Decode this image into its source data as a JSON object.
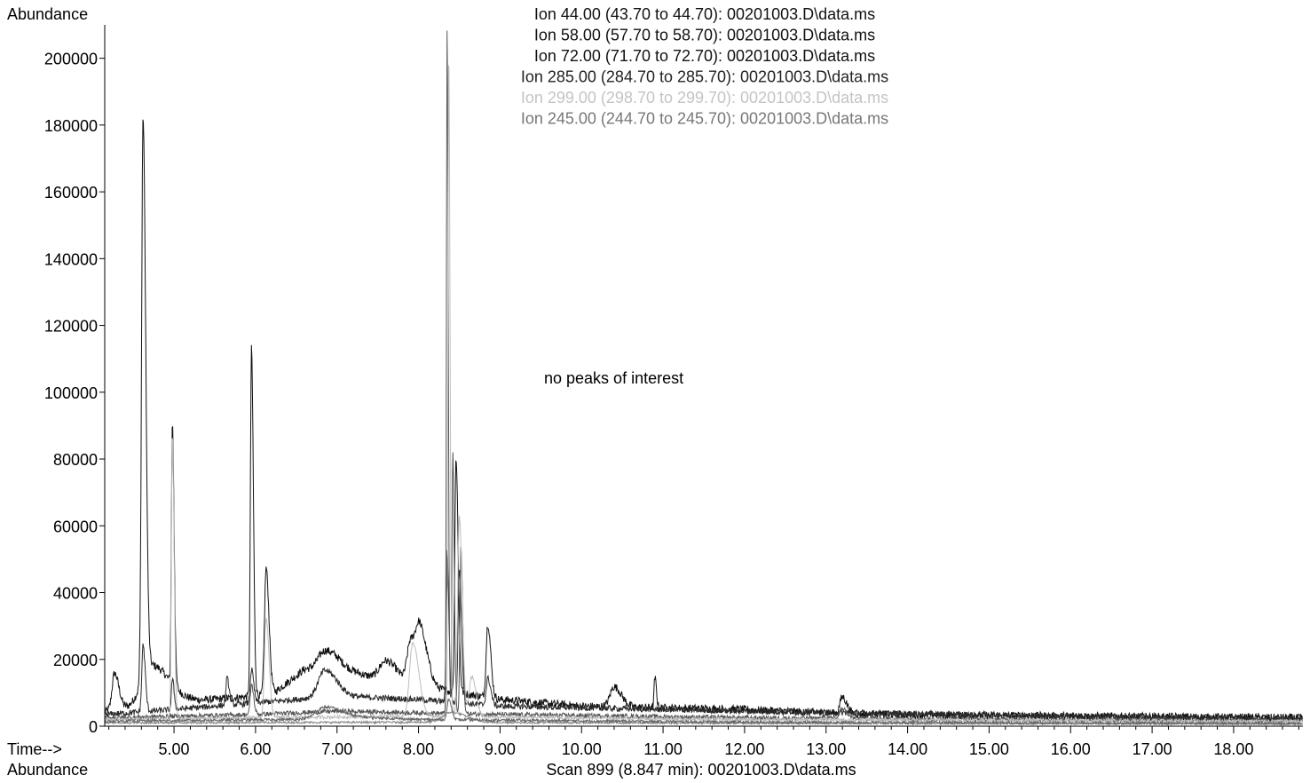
{
  "chart_data": {
    "type": "line",
    "ylabel": "Abundance",
    "xlabel": "Time-->",
    "xlim": [
      4.15,
      18.85
    ],
    "ylim": [
      0,
      210000
    ],
    "yticks": [
      0,
      20000,
      40000,
      60000,
      80000,
      100000,
      120000,
      140000,
      160000,
      180000,
      200000
    ],
    "ytick_labels": [
      "0",
      "20000",
      "40000",
      "60000",
      "80000",
      "100000",
      "120000",
      "140000",
      "160000",
      "180000",
      "200000"
    ],
    "xticks": [
      5,
      6,
      7,
      8,
      9,
      10,
      11,
      12,
      13,
      14,
      15,
      16,
      17,
      18
    ],
    "xtick_labels": [
      "5.00",
      "6.00",
      "7.00",
      "8.00",
      "9.00",
      "10.00",
      "11.00",
      "12.00",
      "13.00",
      "14.00",
      "15.00",
      "16.00",
      "17.00",
      "18.00"
    ],
    "annotation": "no peaks of interest",
    "footer_left": "Abundance",
    "footer_center": "Scan 899 (8.847 min): 00201003.D\\data.ms",
    "legend": [
      {
        "text": "Ion  44.00 (43.70 to 44.70): 00201003.D\\data.ms",
        "color": "#111111"
      },
      {
        "text": "Ion  58.00 (57.70 to 58.70): 00201003.D\\data.ms",
        "color": "#111111"
      },
      {
        "text": "Ion  72.00 (71.70 to 72.70): 00201003.D\\data.ms",
        "color": "#111111"
      },
      {
        "text": "Ion 285.00 (284.70 to 285.70): 00201003.D\\data.ms",
        "color": "#222222"
      },
      {
        "text": "Ion 299.00 (298.70 to 299.70): 00201003.D\\data.ms",
        "color": "#c4c4c4"
      },
      {
        "text": "Ion 245.00 (244.70 to 245.70): 00201003.D\\data.ms",
        "color": "#777777"
      }
    ],
    "series": [
      {
        "color": "#111111",
        "baseline": [
          [
            4.15,
            4500
          ],
          [
            5.0,
            7000
          ],
          [
            6.2,
            9500
          ],
          [
            6.6,
            17000
          ],
          [
            7.0,
            18000
          ],
          [
            7.5,
            14000
          ],
          [
            8.0,
            12000
          ],
          [
            9.0,
            8000
          ],
          [
            10.0,
            6000
          ],
          [
            12.0,
            5000
          ],
          [
            13.5,
            3500
          ],
          [
            18.85,
            2500
          ]
        ],
        "noise": 1200,
        "peaks": [
          [
            4.27,
            11000,
            0.03
          ],
          [
            4.62,
            168000,
            0.018
          ],
          [
            4.72,
            12000,
            0.12
          ],
          [
            4.98,
            78000,
            0.012
          ],
          [
            5.95,
            104000,
            0.013
          ],
          [
            6.13,
            38000,
            0.02
          ],
          [
            6.85,
            5000,
            0.08
          ],
          [
            7.6,
            6000,
            0.08
          ],
          [
            7.9,
            12000,
            0.04
          ],
          [
            8.02,
            16000,
            0.05
          ],
          [
            8.46,
            70000,
            0.015
          ],
          [
            8.85,
            22000,
            0.02
          ],
          [
            10.4,
            6000,
            0.05
          ],
          [
            10.9,
            9000,
            0.01
          ],
          [
            13.2,
            5000,
            0.03
          ]
        ]
      },
      {
        "color": "#2a2a2a",
        "baseline": [
          [
            4.15,
            3500
          ],
          [
            5.0,
            5000
          ],
          [
            6.5,
            8000
          ],
          [
            7.0,
            9000
          ],
          [
            8.0,
            8000
          ],
          [
            9.0,
            6000
          ],
          [
            12.0,
            4500
          ],
          [
            18.85,
            2000
          ]
        ],
        "noise": 900,
        "peaks": [
          [
            4.62,
            20000,
            0.015
          ],
          [
            4.98,
            9000,
            0.012
          ],
          [
            5.65,
            8000,
            0.015
          ],
          [
            5.95,
            10000,
            0.015
          ],
          [
            6.85,
            8000,
            0.08
          ],
          [
            8.35,
            45000,
            0.012
          ],
          [
            8.5,
            40000,
            0.015
          ],
          [
            8.85,
            8000,
            0.02
          ]
        ]
      },
      {
        "color": "#555555",
        "baseline": [
          [
            4.15,
            2500
          ],
          [
            6.0,
            3500
          ],
          [
            7.0,
            4500
          ],
          [
            8.0,
            4000
          ],
          [
            9.0,
            3500
          ],
          [
            12.0,
            2500
          ],
          [
            18.85,
            1500
          ]
        ],
        "noise": 700,
        "peaks": [
          [
            5.95,
            9000,
            0.015
          ],
          [
            8.35,
            204000,
            0.008
          ],
          [
            8.42,
            78000,
            0.01
          ],
          [
            8.52,
            50000,
            0.012
          ],
          [
            13.2,
            3000,
            0.03
          ]
        ]
      },
      {
        "color": "#bdbdbd",
        "baseline": [
          [
            4.15,
            2000
          ],
          [
            6.0,
            2500
          ],
          [
            8.0,
            3000
          ],
          [
            12.0,
            2000
          ],
          [
            18.85,
            1500
          ]
        ],
        "noise": 500,
        "peaks": [
          [
            4.98,
            85000,
            0.012
          ],
          [
            6.13,
            30000,
            0.02
          ],
          [
            7.93,
            22000,
            0.04
          ],
          [
            8.37,
            200000,
            0.009
          ],
          [
            8.5,
            60000,
            0.02
          ],
          [
            8.65,
            12000,
            0.03
          ]
        ]
      },
      {
        "color": "#888888",
        "baseline": [
          [
            4.15,
            1000
          ],
          [
            8.0,
            1200
          ],
          [
            12.0,
            900
          ],
          [
            18.85,
            700
          ]
        ],
        "noise": 300,
        "peaks": [
          [
            8.4,
            3000,
            0.1
          ]
        ]
      },
      {
        "color": "#666666",
        "baseline": [
          [
            4.15,
            1500
          ],
          [
            6.5,
            2000
          ],
          [
            7.0,
            3000
          ],
          [
            8.0,
            2000
          ],
          [
            12.0,
            1200
          ],
          [
            18.85,
            800
          ]
        ],
        "noise": 400,
        "peaks": [
          [
            6.85,
            3000,
            0.1
          ],
          [
            8.37,
            6000,
            0.02
          ]
        ]
      }
    ]
  }
}
